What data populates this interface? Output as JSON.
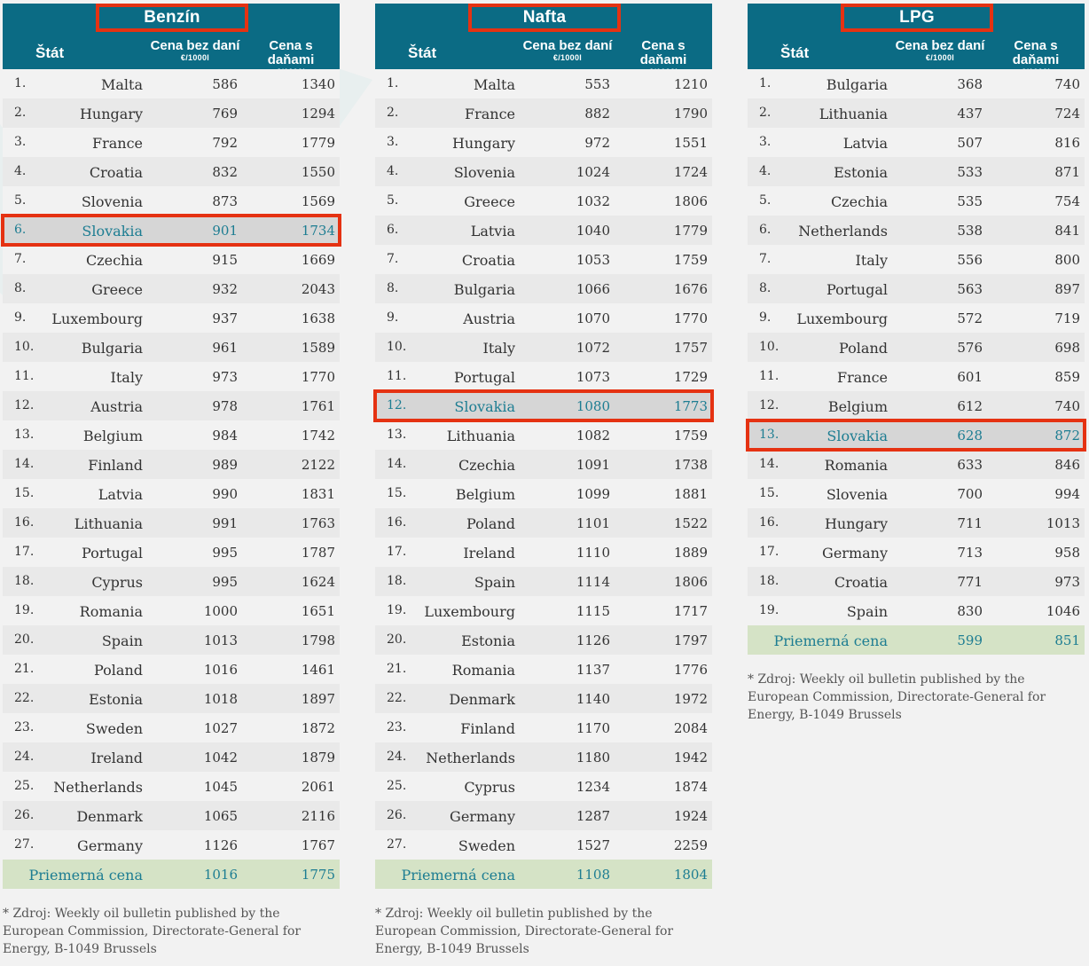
{
  "header": {
    "state_label": "Štát",
    "col1_label": "Cena bez daní",
    "col2_label": "Cena s daňami",
    "unit": "€/1000l"
  },
  "highlight_country": "Slovakia",
  "colors": {
    "header_bg": "#0b6b84",
    "highlight_border": "#e53212",
    "avg_bg": "#d5e3c6",
    "accent_text": "#1d7d92"
  },
  "tables": [
    {
      "title": "Benzín",
      "rows": [
        [
          "1.",
          "Malta",
          "586",
          "1340"
        ],
        [
          "2.",
          "Hungary",
          "769",
          "1294"
        ],
        [
          "3.",
          "France",
          "792",
          "1779"
        ],
        [
          "4.",
          "Croatia",
          "832",
          "1550"
        ],
        [
          "5.",
          "Slovenia",
          "873",
          "1569"
        ],
        [
          "6.",
          "Slovakia",
          "901",
          "1734"
        ],
        [
          "7.",
          "Czechia",
          "915",
          "1669"
        ],
        [
          "8.",
          "Greece",
          "932",
          "2043"
        ],
        [
          "9.",
          "Luxembourg",
          "937",
          "1638"
        ],
        [
          "10.",
          "Bulgaria",
          "961",
          "1589"
        ],
        [
          "11.",
          "Italy",
          "973",
          "1770"
        ],
        [
          "12.",
          "Austria",
          "978",
          "1761"
        ],
        [
          "13.",
          "Belgium",
          "984",
          "1742"
        ],
        [
          "14.",
          "Finland",
          "989",
          "2122"
        ],
        [
          "15.",
          "Latvia",
          "990",
          "1831"
        ],
        [
          "16.",
          "Lithuania",
          "991",
          "1763"
        ],
        [
          "17.",
          "Portugal",
          "995",
          "1787"
        ],
        [
          "18.",
          "Cyprus",
          "995",
          "1624"
        ],
        [
          "19.",
          "Romania",
          "1000",
          "1651"
        ],
        [
          "20.",
          "Spain",
          "1013",
          "1798"
        ],
        [
          "21.",
          "Poland",
          "1016",
          "1461"
        ],
        [
          "22.",
          "Estonia",
          "1018",
          "1897"
        ],
        [
          "23.",
          "Sweden",
          "1027",
          "1872"
        ],
        [
          "24.",
          "Ireland",
          "1042",
          "1879"
        ],
        [
          "25.",
          "Netherlands",
          "1045",
          "2061"
        ],
        [
          "26.",
          "Denmark",
          "1065",
          "2116"
        ],
        [
          "27.",
          "Germany",
          "1126",
          "1767"
        ]
      ],
      "average": {
        "label": "Priemerná cena",
        "v1": "1016",
        "v2": "1775"
      },
      "note": "* Zdroj: Weekly oil bulletin published by the European Commission, Directorate-General for Energy, B-1049 Brussels"
    },
    {
      "title": "Nafta",
      "rows": [
        [
          "1.",
          "Malta",
          "553",
          "1210"
        ],
        [
          "2.",
          "France",
          "882",
          "1790"
        ],
        [
          "3.",
          "Hungary",
          "972",
          "1551"
        ],
        [
          "4.",
          "Slovenia",
          "1024",
          "1724"
        ],
        [
          "5.",
          "Greece",
          "1032",
          "1806"
        ],
        [
          "6.",
          "Latvia",
          "1040",
          "1779"
        ],
        [
          "7.",
          "Croatia",
          "1053",
          "1759"
        ],
        [
          "8.",
          "Bulgaria",
          "1066",
          "1676"
        ],
        [
          "9.",
          "Austria",
          "1070",
          "1770"
        ],
        [
          "10.",
          "Italy",
          "1072",
          "1757"
        ],
        [
          "11.",
          "Portugal",
          "1073",
          "1729"
        ],
        [
          "12.",
          "Slovakia",
          "1080",
          "1773"
        ],
        [
          "13.",
          "Lithuania",
          "1082",
          "1759"
        ],
        [
          "14.",
          "Czechia",
          "1091",
          "1738"
        ],
        [
          "15.",
          "Belgium",
          "1099",
          "1881"
        ],
        [
          "16.",
          "Poland",
          "1101",
          "1522"
        ],
        [
          "17.",
          "Ireland",
          "1110",
          "1889"
        ],
        [
          "18.",
          "Spain",
          "1114",
          "1806"
        ],
        [
          "19.",
          "Luxembourg",
          "1115",
          "1717"
        ],
        [
          "20.",
          "Estonia",
          "1126",
          "1797"
        ],
        [
          "21.",
          "Romania",
          "1137",
          "1776"
        ],
        [
          "22.",
          "Denmark",
          "1140",
          "1972"
        ],
        [
          "23.",
          "Finland",
          "1170",
          "2084"
        ],
        [
          "24.",
          "Netherlands",
          "1180",
          "1942"
        ],
        [
          "25.",
          "Cyprus",
          "1234",
          "1874"
        ],
        [
          "26.",
          "Germany",
          "1287",
          "1924"
        ],
        [
          "27.",
          "Sweden",
          "1527",
          "2259"
        ]
      ],
      "average": {
        "label": "Priemerná cena",
        "v1": "1108",
        "v2": "1804"
      },
      "note": "* Zdroj: Weekly oil bulletin published by the European Commission, Directorate-General for Energy, B-1049 Brussels"
    },
    {
      "title": "LPG",
      "rows": [
        [
          "1.",
          "Bulgaria",
          "368",
          "740"
        ],
        [
          "2.",
          "Lithuania",
          "437",
          "724"
        ],
        [
          "3.",
          "Latvia",
          "507",
          "816"
        ],
        [
          "4.",
          "Estonia",
          "533",
          "871"
        ],
        [
          "5.",
          "Czechia",
          "535",
          "754"
        ],
        [
          "6.",
          "Netherlands",
          "538",
          "841"
        ],
        [
          "7.",
          "Italy",
          "556",
          "800"
        ],
        [
          "8.",
          "Portugal",
          "563",
          "897"
        ],
        [
          "9.",
          "Luxembourg",
          "572",
          "719"
        ],
        [
          "10.",
          "Poland",
          "576",
          "698"
        ],
        [
          "11.",
          "France",
          "601",
          "859"
        ],
        [
          "12.",
          "Belgium",
          "612",
          "740"
        ],
        [
          "13.",
          "Slovakia",
          "628",
          "872"
        ],
        [
          "14.",
          "Romania",
          "633",
          "846"
        ],
        [
          "15.",
          "Slovenia",
          "700",
          "994"
        ],
        [
          "16.",
          "Hungary",
          "711",
          "1013"
        ],
        [
          "17.",
          "Germany",
          "713",
          "958"
        ],
        [
          "18.",
          "Croatia",
          "771",
          "973"
        ],
        [
          "19.",
          "Spain",
          "830",
          "1046"
        ]
      ],
      "average": {
        "label": "Priemerná cena",
        "v1": "599",
        "v2": "851"
      },
      "note": "* Zdroj: Weekly oil bulletin published by the European Commission, Directorate-General for Energy, B-1049 Brussels"
    }
  ]
}
